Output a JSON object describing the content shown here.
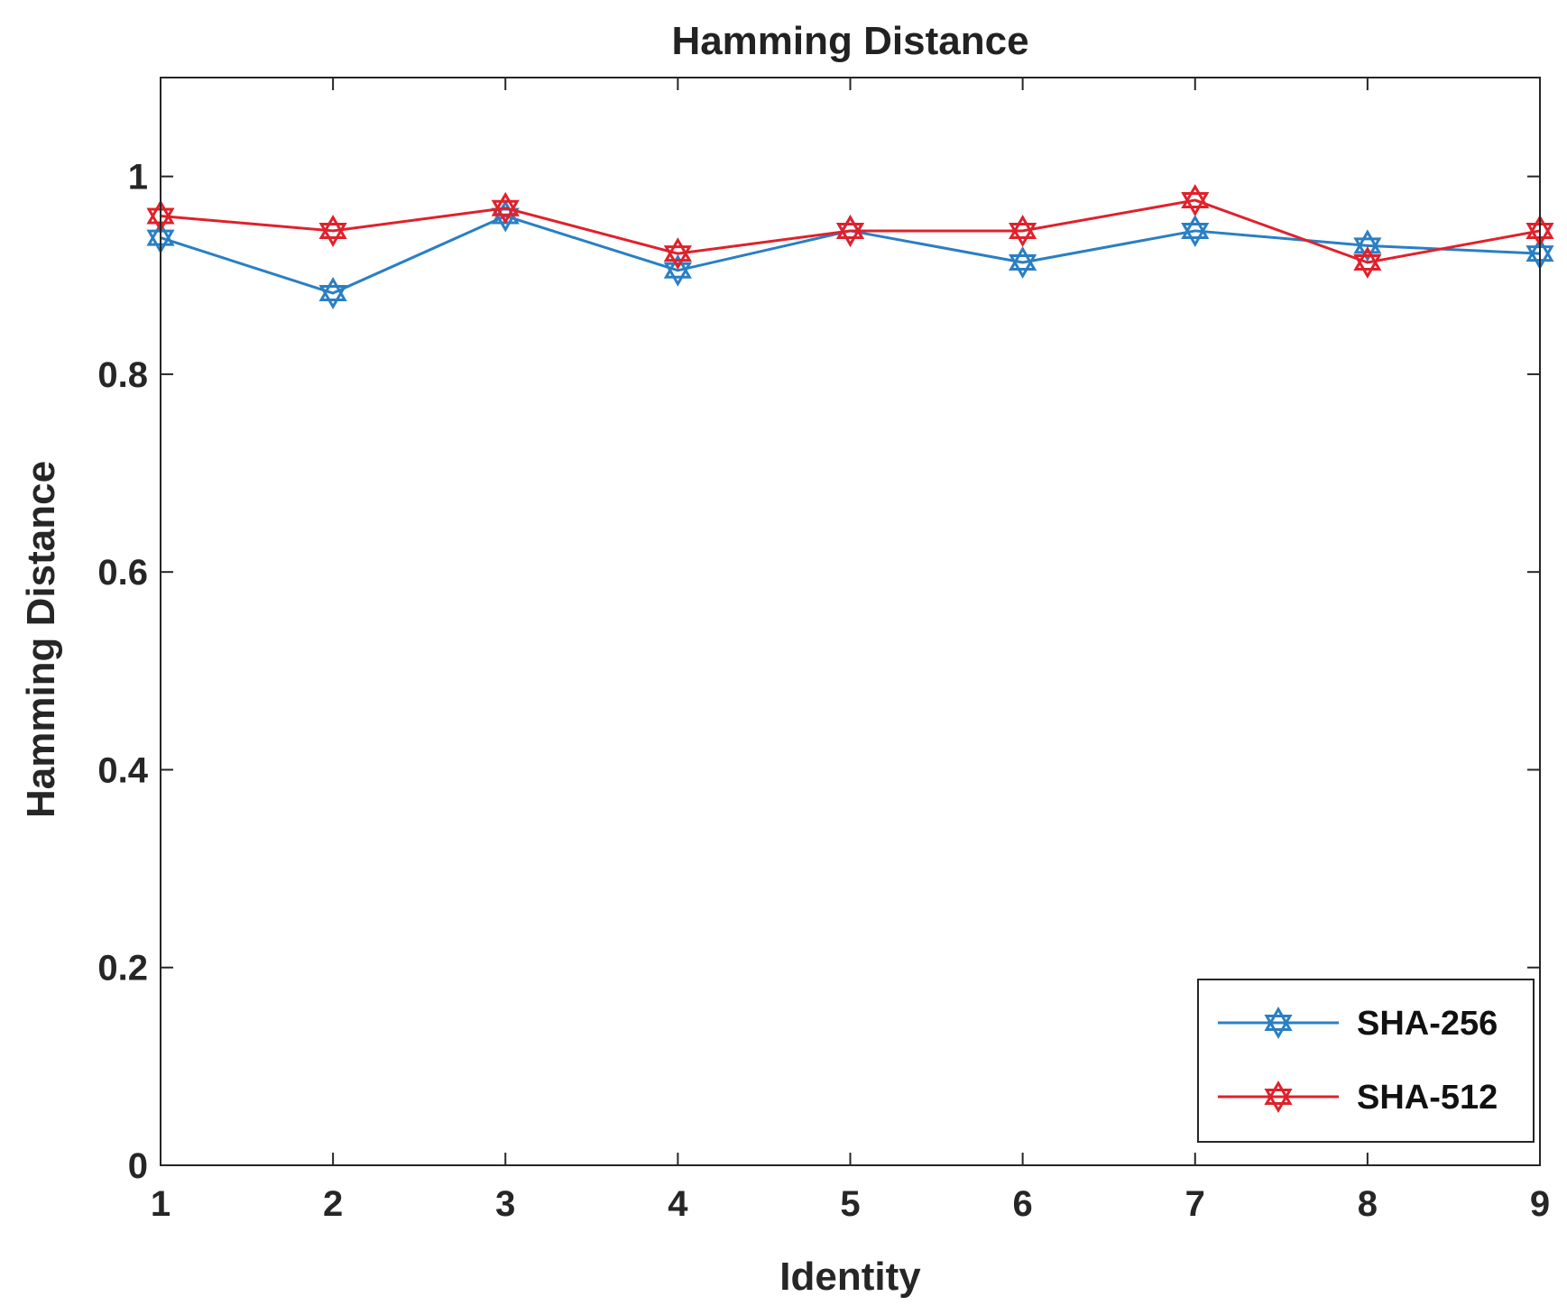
{
  "chart_data": {
    "type": "line",
    "title": "Hamming Distance",
    "xlabel": "Identity",
    "ylabel": "Hamming Distance",
    "x": [
      1,
      2,
      3,
      4,
      5,
      6,
      7,
      8,
      9
    ],
    "xlim": [
      1,
      9
    ],
    "ylim": [
      0,
      1.1
    ],
    "xticks": [
      "1",
      "2",
      "3",
      "4",
      "5",
      "6",
      "7",
      "8",
      "9"
    ],
    "yticks": [
      {
        "value": 0,
        "label": "0"
      },
      {
        "value": 0.2,
        "label": "0.2"
      },
      {
        "value": 0.4,
        "label": "0.4"
      },
      {
        "value": 0.6,
        "label": "0.6"
      },
      {
        "value": 0.8,
        "label": "0.8"
      },
      {
        "value": 1,
        "label": "1"
      }
    ],
    "grid": false,
    "legend_position": "bottom-right",
    "marker": "hexagram",
    "series": [
      {
        "name": "SHA-256",
        "color": "#2a7fc4",
        "values": [
          0.938,
          0.882,
          0.96,
          0.905,
          0.945,
          0.913,
          0.945,
          0.93,
          0.922
        ]
      },
      {
        "name": "SHA-512",
        "color": "#e0212b",
        "values": [
          0.96,
          0.945,
          0.968,
          0.922,
          0.945,
          0.945,
          0.976,
          0.913,
          0.945
        ]
      }
    ]
  }
}
